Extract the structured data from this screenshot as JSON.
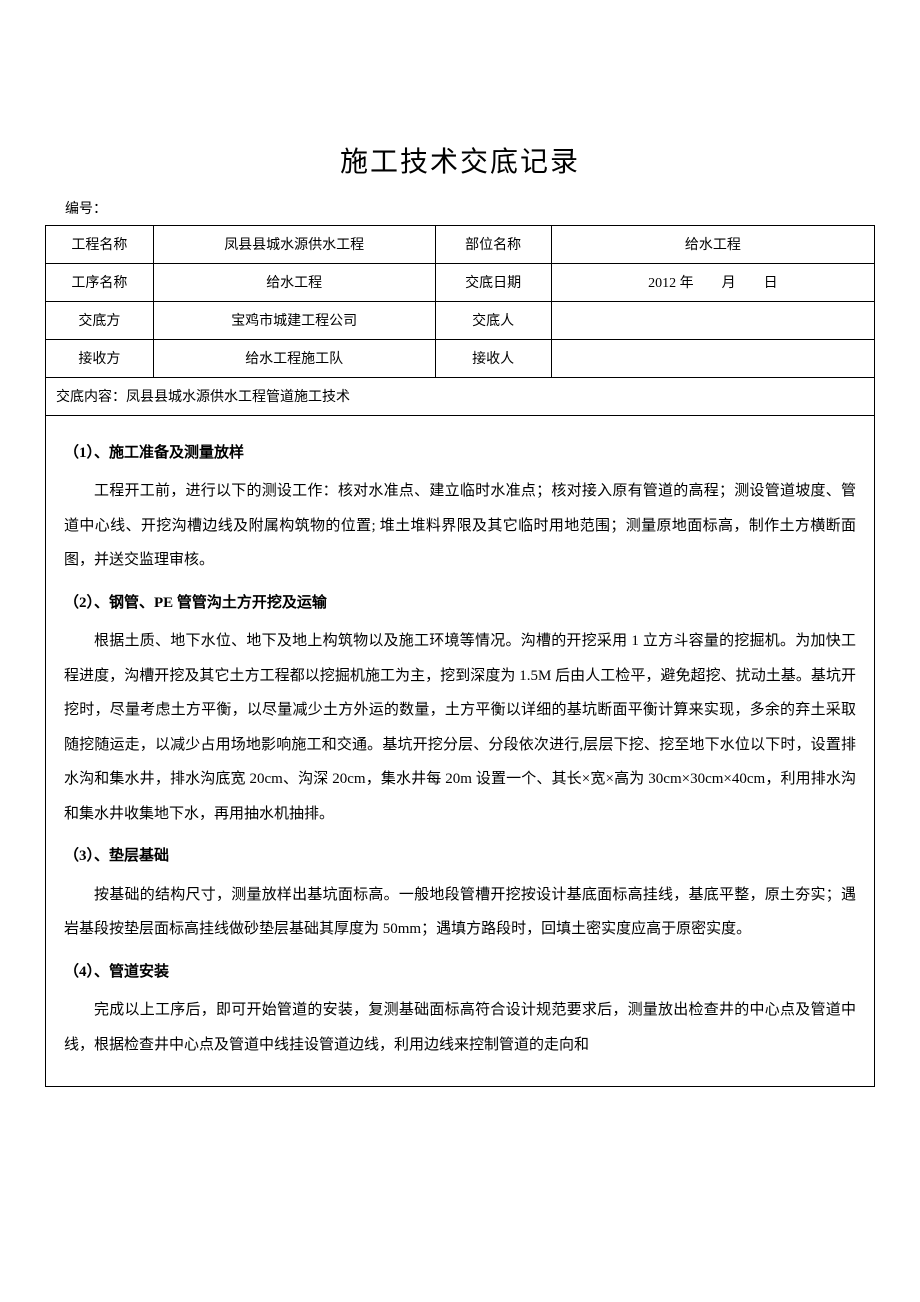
{
  "document": {
    "title": "施工技术交底记录",
    "serial_label": "编号：",
    "fonts": {
      "title_size": 28,
      "body_size": 15,
      "table_size": 14
    },
    "colors": {
      "text": "#000000",
      "background": "#ffffff",
      "border": "#000000"
    }
  },
  "table": {
    "rows": [
      {
        "label1": "工程名称",
        "value1": "凤县县城水源供水工程",
        "label2": "部位名称",
        "value2": "给水工程"
      },
      {
        "label1": "工序名称",
        "value1": "给水工程",
        "label2": "交底日期",
        "value2": "2012 年　　月　　日"
      },
      {
        "label1": "交底方",
        "value1": "宝鸡市城建工程公司",
        "label2": "交底人",
        "value2": ""
      },
      {
        "label1": "接收方",
        "value1": "给水工程施工队",
        "label2": "接收人",
        "value2": ""
      }
    ],
    "content_label": "交底内容：凤县县城水源供水工程管道施工技术",
    "column_widths": [
      "13%",
      "34%",
      "14%",
      "39%"
    ]
  },
  "sections": [
    {
      "heading": "（1）、施工准备及测量放样",
      "paragraph": "工程开工前，进行以下的测设工作：核对水准点、建立临时水准点；核对接入原有管道的高程；测设管道坡度、管道中心线、开挖沟槽边线及附属构筑物的位置; 堆土堆料界限及其它临时用地范围；测量原地面标高，制作土方横断面图，并送交监理审核。"
    },
    {
      "heading": "（2）、钢管、PE 管管沟土方开挖及运输",
      "paragraph": "根据土质、地下水位、地下及地上构筑物以及施工环境等情况。沟槽的开挖采用 1 立方斗容量的挖掘机。为加快工程进度，沟槽开挖及其它土方工程都以挖掘机施工为主，挖到深度为 1.5M 后由人工检平，避免超挖、扰动土基。基坑开挖时，尽量考虑土方平衡，以尽量减少土方外运的数量，土方平衡以详细的基坑断面平衡计算来实现，多余的弃土采取随挖随运走，以减少占用场地影响施工和交通。基坑开挖分层、分段依次进行,层层下挖、挖至地下水位以下时，设置排水沟和集水井，排水沟底宽 20cm、沟深 20cm，集水井每 20m 设置一个、其长×宽×高为 30cm×30cm×40cm，利用排水沟和集水井收集地下水，再用抽水机抽排。"
    },
    {
      "heading": "（3）、垫层基础",
      "paragraph": "按基础的结构尺寸，测量放样出基坑面标高。一般地段管槽开挖按设计基底面标高挂线，基底平整，原土夯实；遇岩基段按垫层面标高挂线做砂垫层基础其厚度为 50mm；遇填方路段时，回填土密实度应高于原密实度。"
    },
    {
      "heading": "（4）、管道安装",
      "paragraph": "完成以上工序后，即可开始管道的安装，复测基础面标高符合设计规范要求后，测量放出检查井的中心点及管道中线，根据检查井中心点及管道中线挂设管道边线，利用边线来控制管道的走向和"
    }
  ]
}
